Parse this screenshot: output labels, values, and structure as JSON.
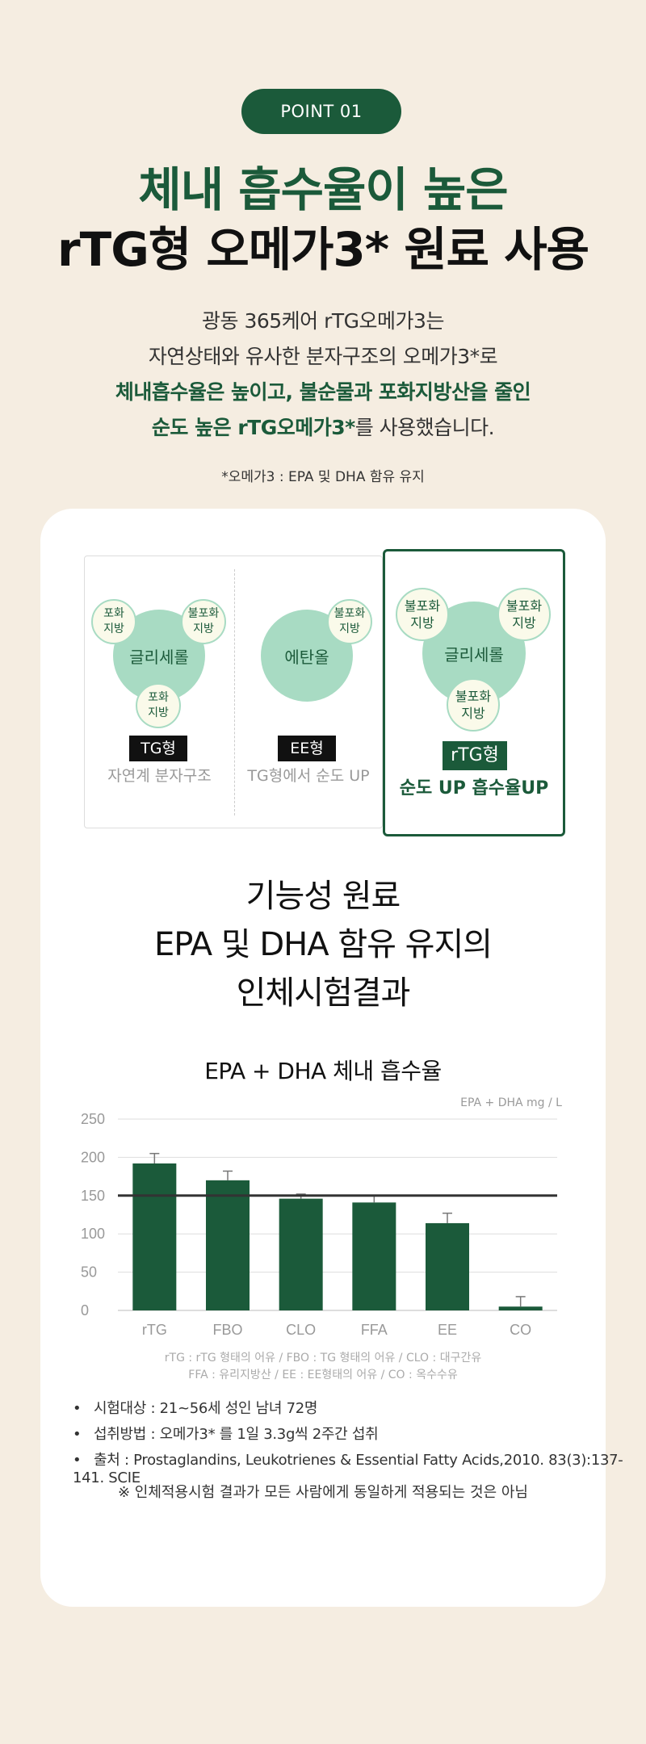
{
  "header": {
    "point_label": "POINT 01",
    "title_line1": "체내 흡수율이 높은",
    "title_line2": "rTG형 오메가3* 원료 사용"
  },
  "intro": {
    "line1": "광동 365케어 rTG오메가3는",
    "line2": "자연상태와 유사한 분자구조의 오메가3*로",
    "line3": "체내흡수율은 높이고, 불순물과 포화지방산을 줄인",
    "line4_bold": "순도 높은 rTG오메가3*",
    "line4_rest": "를 사용했습니다."
  },
  "footnote": "*오메가3 : EPA 및 DHA 함유 유지",
  "structures": {
    "tg": {
      "center": "글리세롤",
      "bubble_top_left": "포화\n지방",
      "bubble_top_right": "불포화\n지방",
      "bubble_bottom": "포화\n지방",
      "tag": "TG형",
      "caption": "자연계 분자구조"
    },
    "ee": {
      "center": "에탄올",
      "bubble_top_right": "불포화\n지방",
      "tag": "EE형",
      "caption": "TG형에서 순도 UP"
    },
    "rtg": {
      "center": "글리세롤",
      "bubble_top_left": "불포화\n지방",
      "bubble_top_right": "불포화\n지방",
      "bubble_bottom": "불포화\n지방",
      "tag": "rTG형",
      "caption": "순도 UP 흡수율UP"
    }
  },
  "study": {
    "line1": "기능성 원료",
    "line2": "EPA 및 DHA 함유 유지의",
    "line3": "인체시험결과"
  },
  "chart_data": {
    "type": "bar",
    "title": "EPA + DHA 체내 흡수율",
    "unit": "EPA + DHA mg / L",
    "categories": [
      "rTG",
      "FBO",
      "CLO",
      "FFA",
      "EE",
      "CO"
    ],
    "values": [
      192,
      170,
      146,
      141,
      114,
      5
    ],
    "error": [
      13,
      12,
      6,
      9,
      13,
      13
    ],
    "reference_line": 150,
    "ylim": [
      0,
      250
    ],
    "yticks": [
      "250",
      "200",
      "150",
      "100",
      "50",
      "0"
    ],
    "grid": true,
    "bar_color": "#1b5a3a"
  },
  "legend": {
    "line1": "rTG : rTG 형태의 어유 / FBO : TG 형태의 어유 / CLO : 대구간유",
    "line2": "FFA : 유리지방산 / EE : EE형태의 어유 / CO : 옥수수유"
  },
  "bullets": [
    "시험대상 : 21~56세 성인 남녀 72명",
    "섭취방법 : 오메가3* 를 1일 3.3g씩 2주간 섭취",
    "출처 : Prostaglandins, Leukotrienes & Essential Fatty Acids,2010. 83(3):137-141. SCIE"
  ],
  "disclaimer": "※ 인체적용시험 결과가 모든 사람에게 동일하게 적용되는 것은 아님"
}
